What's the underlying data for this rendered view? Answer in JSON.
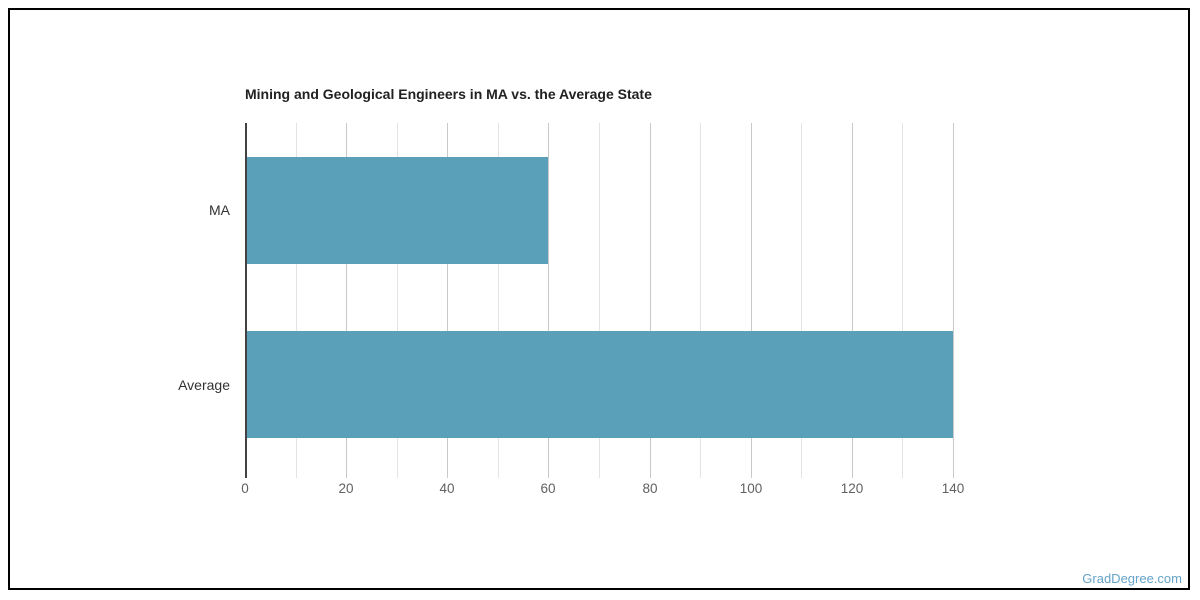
{
  "chart_data": {
    "type": "bar",
    "orientation": "horizontal",
    "title": "Mining and Geological Engineers in MA vs. the Average State",
    "categories": [
      "MA",
      "Average"
    ],
    "values": [
      60,
      140
    ],
    "xlabel": "",
    "ylabel": "",
    "xlim": [
      0,
      140
    ],
    "x_major_ticks": [
      0,
      20,
      40,
      60,
      80,
      100,
      120,
      140
    ],
    "x_minor_tick_step": 10,
    "grid": true,
    "legend": false,
    "bar_color": "#5BA0B9"
  },
  "watermark": {
    "label": "GradDegree.com",
    "color": "#64A3C8"
  },
  "colors": {
    "background": "#FFFFFF",
    "frame_border": "#000000",
    "title": "#212121",
    "major_gridline": "#C9C9C9",
    "minor_gridline": "#E4E4E4",
    "axis_line": "#424242",
    "tick_label": "#616161",
    "category_label": "#333333"
  }
}
